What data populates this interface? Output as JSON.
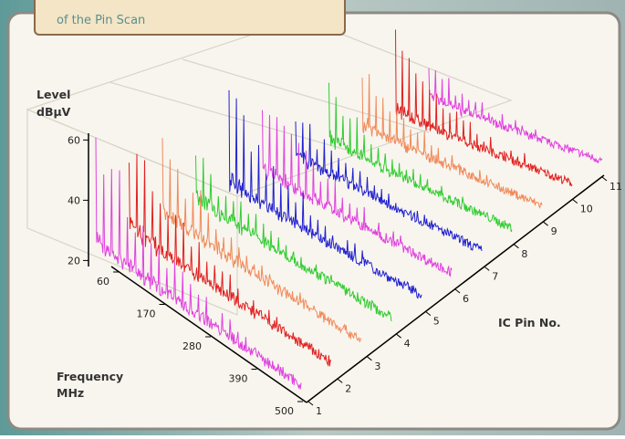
{
  "tooltip": "of the Pin Scan",
  "level_axis": {
    "title": "Level",
    "unit": "dBµV",
    "ticks": [
      20,
      40,
      60
    ]
  },
  "frequency_axis": {
    "title": "Frequency",
    "unit": "MHz",
    "ticks": [
      60,
      170,
      280,
      390,
      500
    ]
  },
  "pin_axis": {
    "title": "IC Pin No.",
    "ticks": [
      1,
      2,
      3,
      4,
      5,
      6,
      7,
      8,
      9,
      10,
      11
    ]
  }
}
